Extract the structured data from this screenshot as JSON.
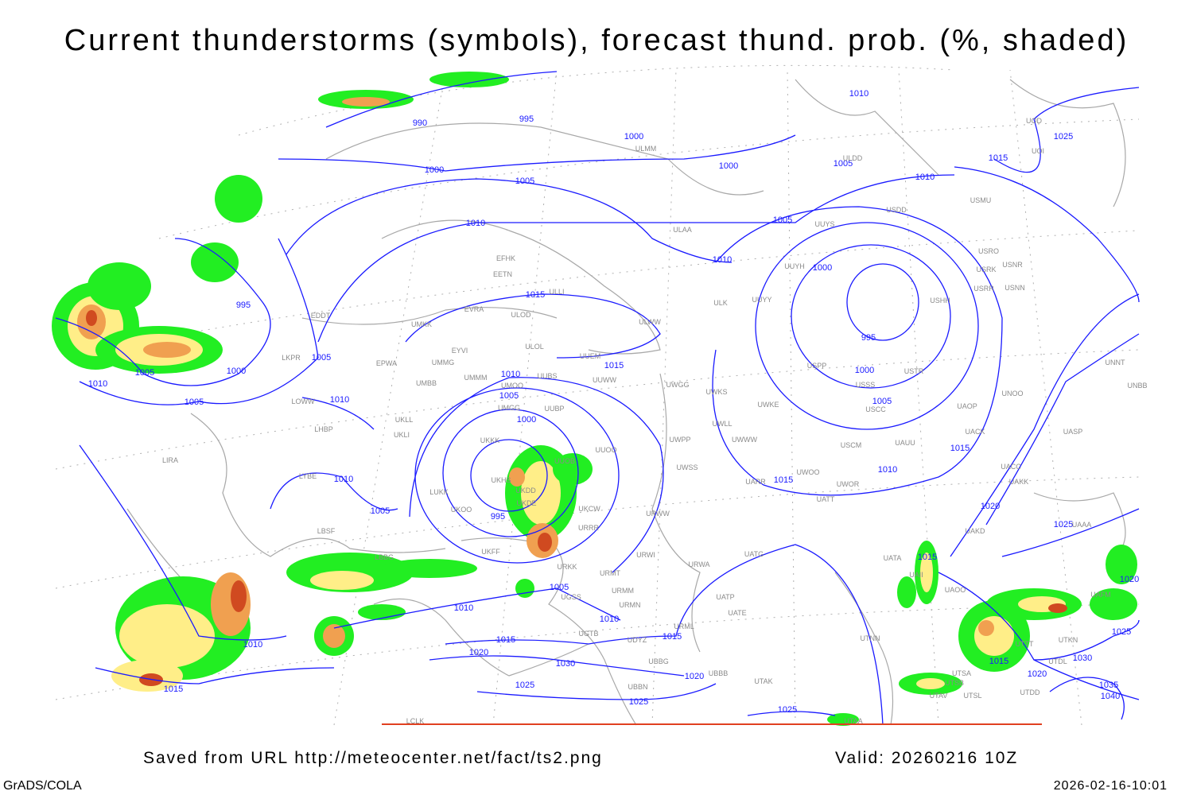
{
  "title": "Current thunderstorms (symbols), forecast thund. prob. (%, shaded)",
  "footer": {
    "saved_from": "Saved from URL http://meteocenter.net/fact/ts2.png",
    "valid": "Valid: 20260216 10Z",
    "software": "GrADS/COLA",
    "timestamp": "2026-02-16-10:01"
  },
  "colors": {
    "isobar": "#1a1aff",
    "coastline": "#a8a8a8",
    "prob_low": "#22ee22",
    "prob_mid": "#ffee88",
    "prob_high": "#f0a050",
    "prob_max": "#d04a20"
  },
  "map": {
    "isobar_labels": [
      "990",
      "995",
      "1000",
      "1000",
      "1005",
      "1000",
      "1010",
      "1005",
      "1010",
      "1015",
      "1025",
      "1010",
      "1005",
      "1010",
      "1000",
      "995",
      "1000",
      "1005",
      "1015",
      "995",
      "1005",
      "1005",
      "1000",
      "1010",
      "1005",
      "1010",
      "1010",
      "1005",
      "1000",
      "1010",
      "1005",
      "995",
      "1015",
      "1010",
      "1015",
      "1020",
      "1025",
      "1015",
      "1020",
      "1025",
      "1005",
      "1010",
      "1010",
      "1015",
      "1015",
      "1020",
      "1010",
      "1015",
      "1030",
      "1025",
      "1025",
      "1020",
      "1025",
      "1015",
      "1020",
      "1030",
      "1035",
      "1040",
      "1015"
    ],
    "stations": [
      "ULMM",
      "ULDD",
      "USDD",
      "USMU",
      "UOD",
      "UOI",
      "ULAA",
      "UUYS",
      "EFHK",
      "EETN",
      "USRO",
      "USRK",
      "USNR",
      "USRR",
      "USNN",
      "UUYH",
      "ULLI",
      "EVRA",
      "ULOD",
      "UMKK",
      "ULWW",
      "ULK",
      "UUYY",
      "USHH",
      "EDDT",
      "EYVI",
      "ULOL",
      "UUEM",
      "LKPR",
      "EPWA",
      "UMMG",
      "USPP",
      "USTR",
      "UNNT",
      "UMMM",
      "UMOO",
      "UUBS",
      "UUWW",
      "UWGG",
      "UWKS",
      "USSS",
      "UNBB",
      "UNOO",
      "UMBB",
      "LOWW",
      "UWKE",
      "USCC",
      "UAOP",
      "UKLL",
      "UMGG",
      "UUBP",
      "UWLL",
      "UKLI",
      "LHBP",
      "UWWW",
      "UWPP",
      "USCM",
      "UAUU",
      "UKKK",
      "UUOO",
      "UUOB",
      "LIRA",
      "UWSS",
      "UACC",
      "LYBE",
      "UKHS",
      "UWOO",
      "UARR",
      "UWOR",
      "UAKK",
      "LUKK",
      "UKDD",
      "UKDE",
      "UKOO",
      "UKCW",
      "URWW",
      "UATT",
      "URRR",
      "LBSF",
      "UAKD",
      "LBBG",
      "UKFF",
      "URWI",
      "UATG",
      "UATA",
      "URKK",
      "URMT",
      "URWA",
      "UAII",
      "UAOO",
      "UAFM",
      "URMM",
      "UATP",
      "UGSS",
      "URMN",
      "UATE",
      "URML",
      "UGTB",
      "UDYZ",
      "UBBG",
      "UTNN",
      "UTTT",
      "UTKN",
      "UTDL",
      "UTSA",
      "UTSB",
      "UBBN",
      "UTAK",
      "UBBB",
      "UTAV",
      "UTSL",
      "UTDD",
      "UAAA",
      "UTAA",
      "LCLK",
      "UASP",
      "UACK"
    ]
  }
}
